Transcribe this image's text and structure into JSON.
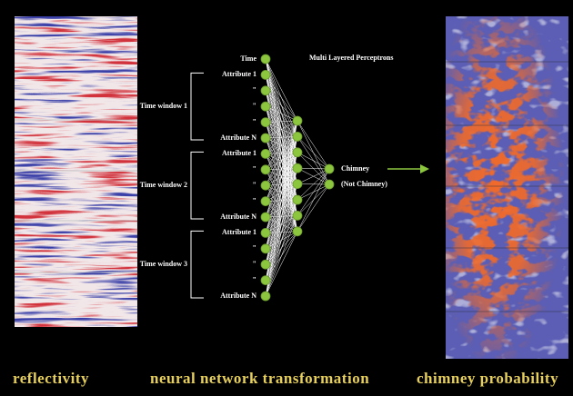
{
  "left_panel": {
    "caption": "reflectivity"
  },
  "network": {
    "title": "Multi Layered Perceptrons",
    "caption": "neural network transformation",
    "inputs": [
      "Time",
      "Attribute 1",
      "\"",
      "\"",
      "\"",
      "Attribute N",
      "Attribute 1",
      "\"",
      "\"",
      "\"",
      "Attribute N",
      "Attribute 1",
      "\"",
      "\"",
      "\"",
      "Attribute N"
    ],
    "windows": [
      "Time window 1",
      "Time window 2",
      "Time window 3"
    ],
    "outputs": [
      "Chimney",
      "(Not Chimney)"
    ]
  },
  "right_panel": {
    "caption": "chimney probability"
  }
}
